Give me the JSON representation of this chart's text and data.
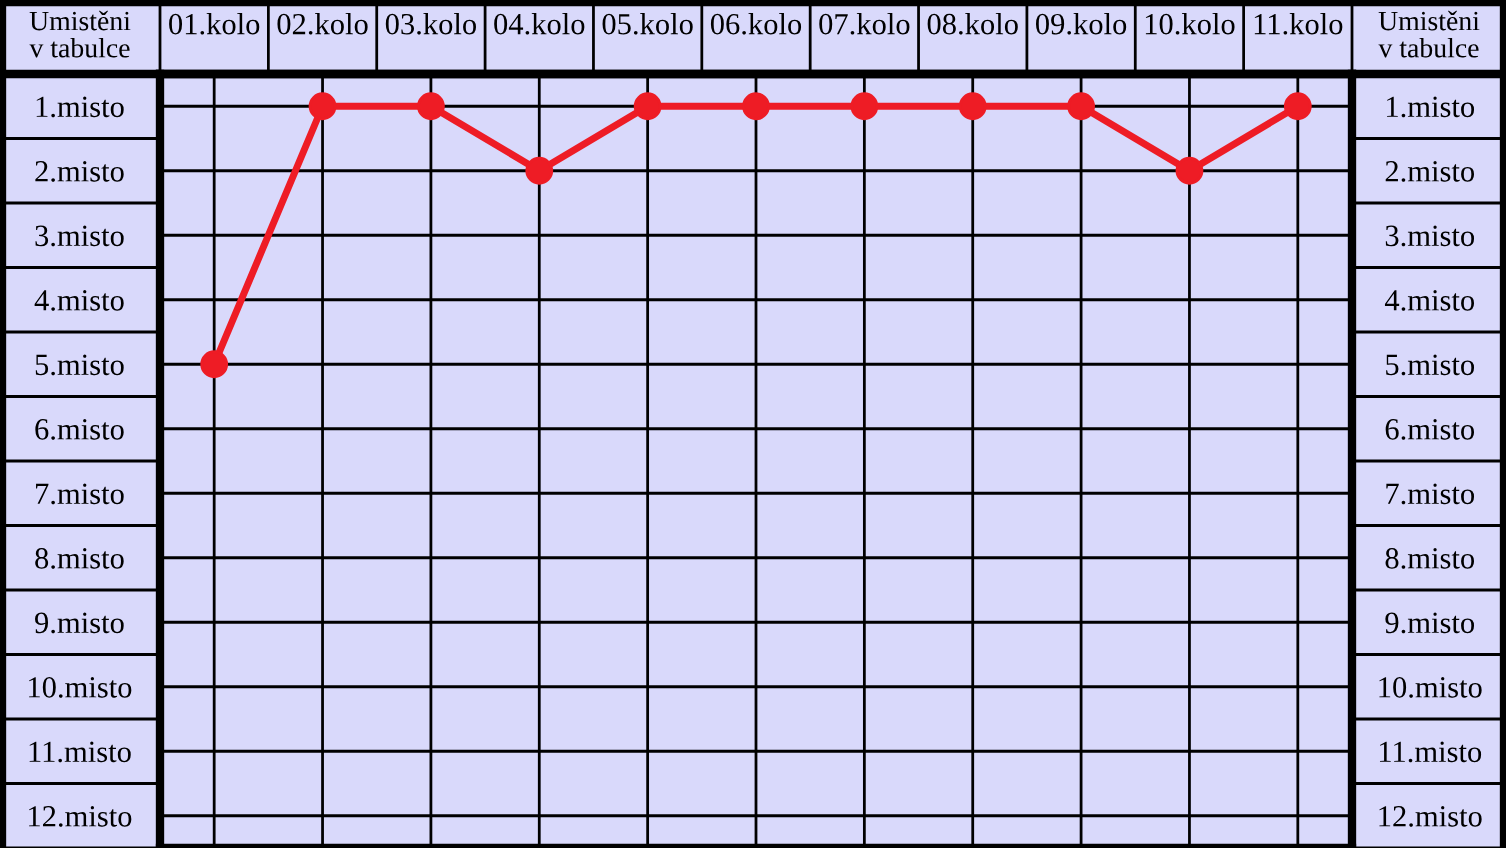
{
  "chart_data": {
    "type": "line",
    "categories": [
      "01.kolo",
      "02.kolo",
      "03.kolo",
      "04.kolo",
      "05.kolo",
      "06.kolo",
      "07.kolo",
      "08.kolo",
      "09.kolo",
      "10.kolo",
      "11.kolo"
    ],
    "series": [
      {
        "color": "#ee1c25",
        "values": [
          5,
          1,
          1,
          2,
          1,
          1,
          1,
          1,
          1,
          2,
          1
        ]
      }
    ],
    "ylabel": "Umistěni\nv tabulce",
    "y2label": "Umistěni\nv tabulce",
    "ylim": [
      12.5,
      0.5
    ],
    "yticks": [
      {
        "value": 1,
        "label": "1.misto"
      },
      {
        "value": 2,
        "label": "2.misto"
      },
      {
        "value": 3,
        "label": "3.misto"
      },
      {
        "value": 4,
        "label": "4.misto"
      },
      {
        "value": 5,
        "label": "5.misto"
      },
      {
        "value": 6,
        "label": "6.misto"
      },
      {
        "value": 7,
        "label": "7.misto"
      },
      {
        "value": 8,
        "label": "8.misto"
      },
      {
        "value": 9,
        "label": "9.misto"
      },
      {
        "value": 10,
        "label": "10.misto"
      },
      {
        "value": 11,
        "label": "11.misto"
      },
      {
        "value": 12,
        "label": "12.misto"
      }
    ],
    "y2lim": [
      12.5,
      0.5
    ],
    "y2ticks": [
      {
        "value": 1,
        "label": "1.misto"
      },
      {
        "value": 2,
        "label": "2.misto"
      },
      {
        "value": 3,
        "label": "3.misto"
      },
      {
        "value": 4,
        "label": "4.misto"
      },
      {
        "value": 5,
        "label": "5.misto"
      },
      {
        "value": 6,
        "label": "6.misto"
      },
      {
        "value": 7,
        "label": "7.misto"
      },
      {
        "value": 8,
        "label": "8.misto"
      },
      {
        "value": 9,
        "label": "9.misto"
      },
      {
        "value": 10,
        "label": "10.misto"
      },
      {
        "value": 11,
        "label": "11.misto"
      },
      {
        "value": 12,
        "label": "12.misto"
      }
    ],
    "grid": true,
    "marker": "circle",
    "line_style": "solid",
    "legend": false
  }
}
